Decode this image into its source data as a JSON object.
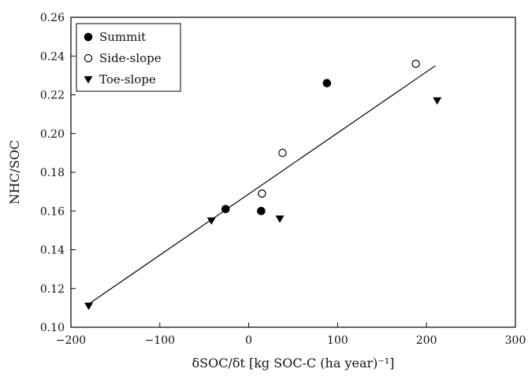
{
  "chart_data": {
    "type": "scatter",
    "title": "",
    "xlabel": "δSOC/δt [kg SOC-C (ha year)⁻¹]",
    "ylabel": "NHC/SOC",
    "xlim": [
      -200,
      300
    ],
    "ylim": [
      0.1,
      0.26
    ],
    "xticks": [
      "−200",
      "−100",
      "0",
      "100",
      "200",
      "300"
    ],
    "yticks": [
      "0.10",
      "0.12",
      "0.14",
      "0.16",
      "0.18",
      "0.20",
      "0.22",
      "0.24",
      "0.26"
    ],
    "grid": false,
    "legend_position": "top-left",
    "series": [
      {
        "name": "Summit",
        "marker": "filled-circle",
        "points": [
          [
            -26,
            0.161
          ],
          [
            14,
            0.16
          ],
          [
            88,
            0.226
          ]
        ]
      },
      {
        "name": "Side-slope",
        "marker": "open-circle",
        "points": [
          [
            15,
            0.169
          ],
          [
            38,
            0.19
          ],
          [
            188,
            0.236
          ]
        ]
      },
      {
        "name": "Toe-slope",
        "marker": "filled-triangle-down",
        "points": [
          [
            -180,
            0.111
          ],
          [
            -42,
            0.155
          ],
          [
            35,
            0.156
          ],
          [
            212,
            0.217
          ]
        ]
      }
    ],
    "trendline": {
      "from": [
        -180,
        0.112
      ],
      "to": [
        210,
        0.235
      ]
    }
  }
}
